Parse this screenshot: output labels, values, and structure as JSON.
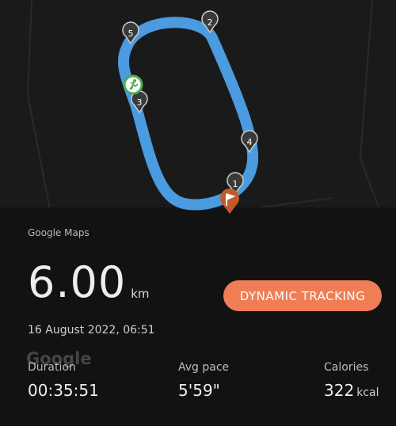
{
  "map": {
    "caption": "Google Maps",
    "watermark": "Google",
    "route_color": "#4a9be0",
    "marker_color": "#3a3a3a",
    "start_marker_color": "#c45a2a",
    "runner_marker_color": "#4caf50",
    "waypoints": [
      "1",
      "2",
      "3",
      "4",
      "5"
    ]
  },
  "summary": {
    "distance_value": "6.00",
    "distance_unit": "km",
    "datetime": "16 August 2022, 06:51"
  },
  "cta": {
    "label": "DYNAMIC TRACKING",
    "color": "#ef7d55"
  },
  "stats": {
    "duration": {
      "label": "Duration",
      "value": "00:35:51"
    },
    "pace": {
      "label": "Avg pace",
      "value": "5'59\""
    },
    "calories": {
      "label": "Calories",
      "value": "322",
      "unit": "kcal"
    }
  }
}
